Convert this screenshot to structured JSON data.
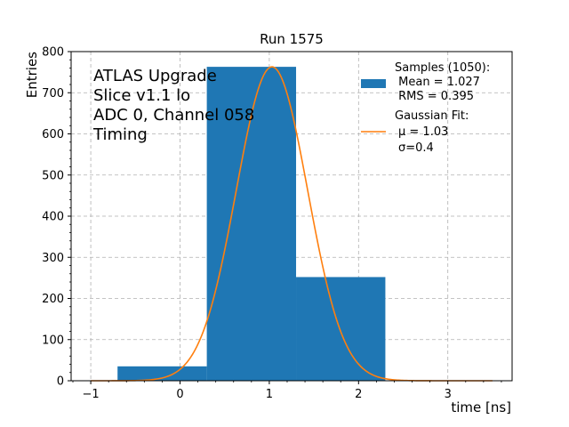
{
  "chart_data": {
    "type": "bar",
    "title": "Run 1575",
    "xlabel": "time [ns]",
    "ylabel": "Entries",
    "xlim": [
      -1.22,
      3.72
    ],
    "ylim": [
      0,
      800
    ],
    "x_ticks": [
      -1,
      0,
      1,
      2,
      3
    ],
    "x_tick_labels": [
      "−1",
      "0",
      "1",
      "2",
      "3"
    ],
    "y_ticks": [
      0,
      100,
      200,
      300,
      400,
      500,
      600,
      700,
      800
    ],
    "y_tick_labels": [
      "0",
      "100",
      "200",
      "300",
      "400",
      "500",
      "600",
      "700",
      "800"
    ],
    "grid": true,
    "legend_position": "top-right",
    "annotation": [
      "ATLAS Upgrade",
      "Slice v1.1 lo",
      "ADC 0, Channel 058",
      "Timing"
    ],
    "histogram": {
      "color": "#1f77b4",
      "bins": [
        {
          "x0": -0.7,
          "x1": 0.3,
          "value": 35
        },
        {
          "x0": 0.3,
          "x1": 1.3,
          "value": 763
        },
        {
          "x0": 1.3,
          "x1": 2.3,
          "value": 252
        }
      ],
      "legend_lines": [
        "Samples (1050):",
        " Mean = 1.027",
        " RMS = 0.395"
      ]
    },
    "fit": {
      "color": "#ff7f0e",
      "mu": 1.03,
      "sigma": 0.4,
      "amplitude": 763,
      "x_range": [
        -1.0,
        3.5
      ],
      "legend_lines": [
        "Gaussian Fit:",
        "μ = 1.03",
        "σ=0.4"
      ]
    }
  }
}
